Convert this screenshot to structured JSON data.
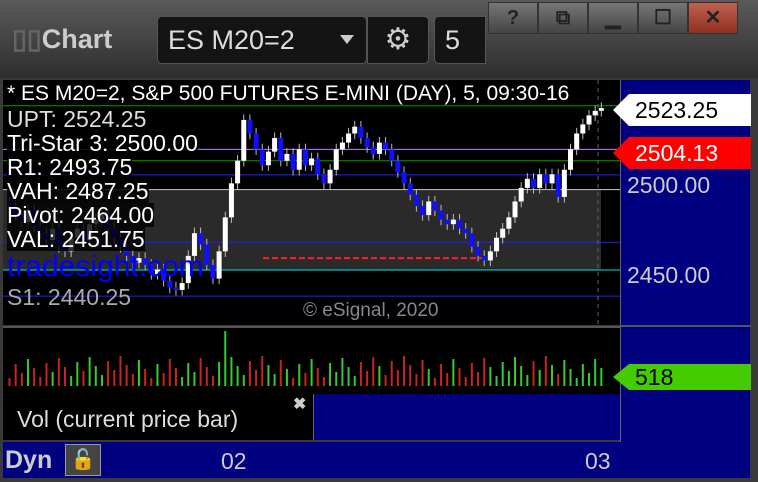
{
  "window": {
    "title": "Chart",
    "help": "?",
    "buttons": [
      "help",
      "dock",
      "minimize",
      "maximize",
      "close"
    ]
  },
  "toolbar": {
    "symbol": "ES M20=2",
    "interval": "5"
  },
  "chart": {
    "header": "* ES M20=2, S&P 500 FUTURES E-MINI (DAY), 5, 09:30-16",
    "levels": [
      {
        "label": "UPT: 2524.25",
        "value": 2524.25,
        "color": "#00a000"
      },
      {
        "label": "Tri-Star 3: 2500.00",
        "value": 2500.0,
        "color": "#00a000"
      },
      {
        "label": "R1: 2493.75",
        "value": 2493.75,
        "color": "#2020ff"
      },
      {
        "label": "VAH: 2487.25",
        "value": 2487.25,
        "color": "#cccccc"
      },
      {
        "label": "Pivot: 2464.00",
        "value": 2464.0,
        "color": "#2020ff"
      },
      {
        "label": "VAL: 2451.75",
        "value": 2451.75,
        "color": "#00e0e0"
      },
      {
        "label": "S1: 2440.25",
        "value": 2440.25,
        "color": "#2020ff"
      }
    ],
    "watermark": "tradesight.com",
    "copyright": "© eSignal, 2020",
    "price_axis": {
      "ticks": [
        "2500.00",
        "2450.00"
      ],
      "last_price": "2523.25",
      "marker_price": "2504.13",
      "marker_color": "#ff0000"
    },
    "time_axis": {
      "ticks": [
        "02",
        "03"
      ]
    },
    "closes": [
      2480,
      2476,
      2473,
      2478,
      2471,
      2468,
      2465,
      2470,
      2462,
      2460,
      2466,
      2470,
      2465,
      2472,
      2474,
      2476,
      2470,
      2466,
      2462,
      2458,
      2455,
      2457,
      2454,
      2450,
      2452,
      2447,
      2444,
      2443,
      2446,
      2458,
      2468,
      2463,
      2454,
      2448,
      2460,
      2475,
      2490,
      2500,
      2518,
      2512,
      2505,
      2498,
      2504,
      2510,
      2500,
      2503,
      2496,
      2505,
      2498,
      2501,
      2494,
      2490,
      2496,
      2505,
      2508,
      2512,
      2515,
      2510,
      2506,
      2503,
      2508,
      2505,
      2500,
      2495,
      2490,
      2485,
      2480,
      2476,
      2482,
      2478,
      2474,
      2472,
      2474,
      2470,
      2468,
      2462,
      2458,
      2456,
      2460,
      2466,
      2470,
      2475,
      2482,
      2488,
      2492,
      2488,
      2494,
      2490,
      2494,
      2484,
      2496,
      2505,
      2512,
      2516,
      2520,
      2522,
      2523.25
    ]
  },
  "volume": {
    "label": "Vol (current price bar)",
    "last": "518",
    "color": "#44cc00"
  },
  "bottom": {
    "mode": "Dyn"
  }
}
